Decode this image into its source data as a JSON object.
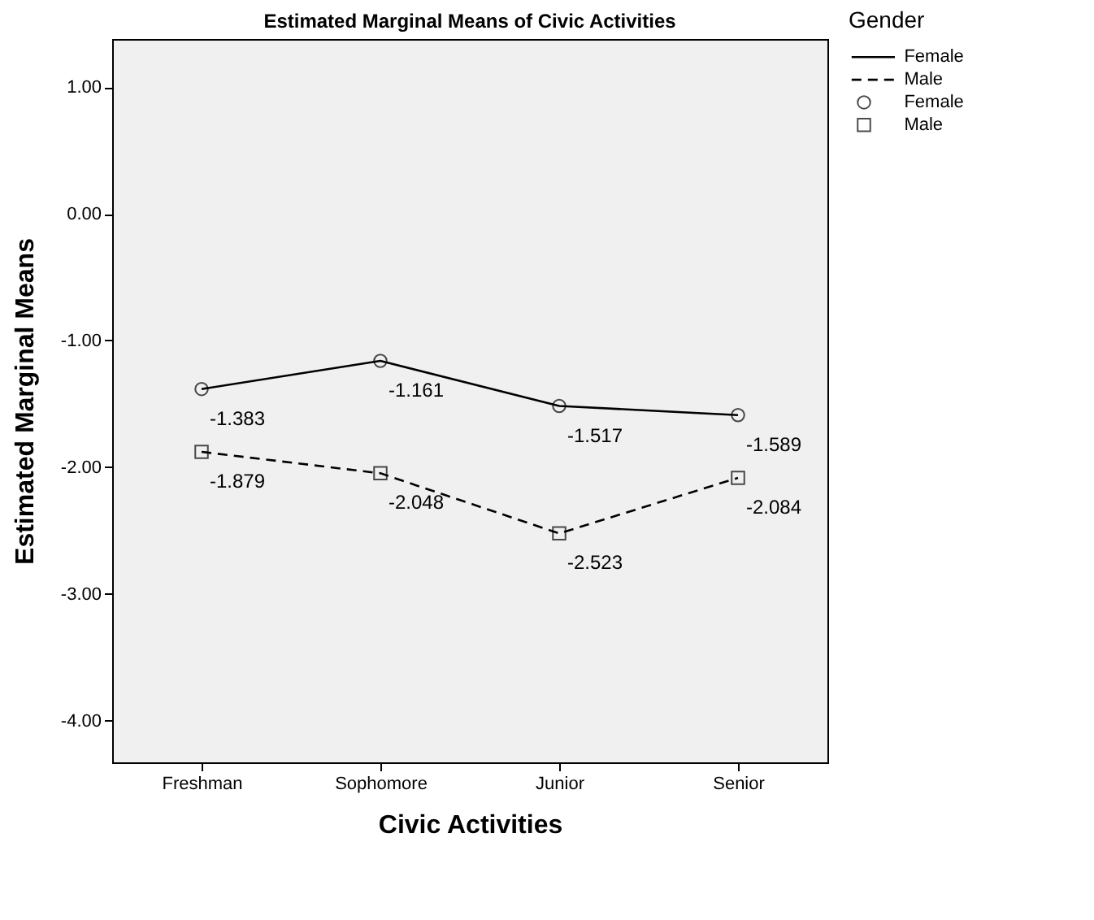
{
  "chart_data": {
    "type": "line",
    "title": "Estimated Marginal Means of Civic Activities",
    "xlabel": "Civic Activities",
    "ylabel": "Estimated Marginal Means",
    "legend_title": "Gender",
    "categories": [
      "Freshman",
      "Sophomore",
      "Junior",
      "Senior"
    ],
    "series": [
      {
        "name": "Female",
        "color": "#000000",
        "values": [
          -1.383,
          -1.161,
          -1.517,
          -1.589
        ],
        "marker": "circle",
        "line_style": "solid"
      },
      {
        "name": "Male",
        "color": "#000000",
        "values": [
          -1.879,
          -2.048,
          -2.523,
          -2.084
        ],
        "marker": "square",
        "line_style": "dashed"
      }
    ],
    "ylim": [
      -4.33,
      1.38
    ],
    "yticks": [
      {
        "value": 1,
        "label": "1.00"
      },
      {
        "value": 0,
        "label": "0.00"
      },
      {
        "value": -1,
        "label": "-1.00"
      },
      {
        "value": -2,
        "label": "-2.00"
      },
      {
        "value": -3,
        "label": "-3.00"
      },
      {
        "value": -4,
        "label": "-4.00"
      }
    ],
    "grid": false,
    "legend": "top right",
    "data_labels": true
  }
}
